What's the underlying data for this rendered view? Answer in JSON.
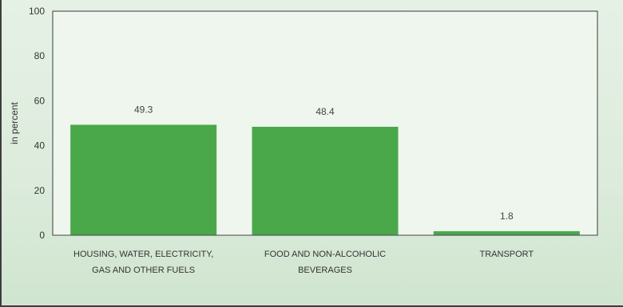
{
  "chart_data": {
    "type": "bar",
    "categories": [
      [
        "HOUSING, WATER, ELECTRICITY,",
        "GAS AND OTHER FUELS"
      ],
      [
        "FOOD AND NON-ALCOHOLIC",
        "BEVERAGES"
      ],
      [
        "TRANSPORT"
      ]
    ],
    "values": [
      49.3,
      48.4,
      1.8
    ],
    "value_labels": [
      "49.3",
      "48.4",
      "1.8"
    ],
    "ylabel": "in percent",
    "ylim": [
      0,
      100
    ],
    "yticks": [
      "0",
      "20",
      "40",
      "60",
      "80",
      "100"
    ],
    "grid": false,
    "colors": {
      "bar": "#4aa84a",
      "plot_bg": "#eef6ee",
      "axis": "#444444"
    }
  }
}
